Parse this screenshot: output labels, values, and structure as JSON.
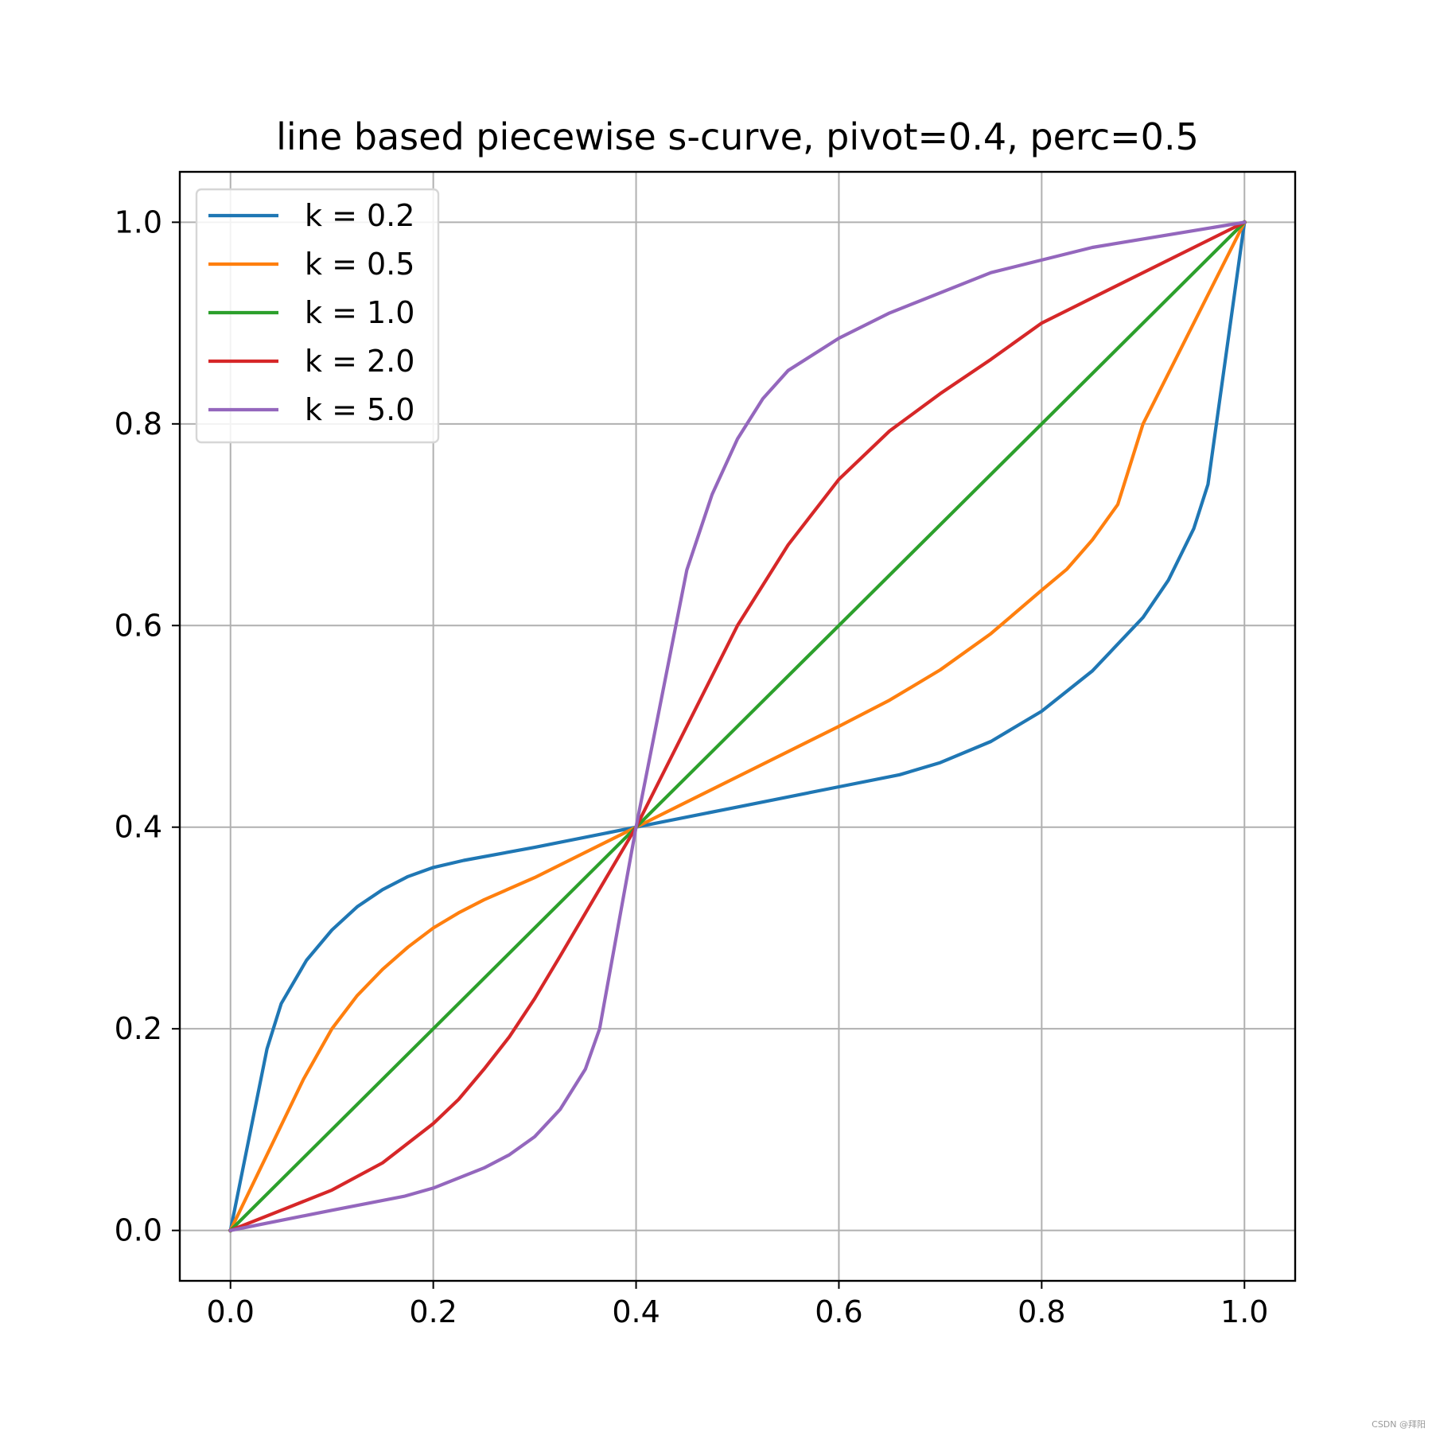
{
  "watermark": "CSDN @拜阳",
  "chart_data": {
    "type": "line",
    "title": "line based piecewise s-curve, pivot=0.4, perc=0.5",
    "xlabel": "",
    "ylabel": "",
    "xlim": [
      -0.05,
      1.05
    ],
    "ylim": [
      -0.05,
      1.05
    ],
    "xticks": [
      0.0,
      0.2,
      0.4,
      0.6,
      0.8,
      1.0
    ],
    "yticks": [
      0.0,
      0.2,
      0.4,
      0.6,
      0.8,
      1.0
    ],
    "xtick_labels": [
      "0.0",
      "0.2",
      "0.4",
      "0.6",
      "0.8",
      "1.0"
    ],
    "ytick_labels": [
      "0.0",
      "0.2",
      "0.4",
      "0.6",
      "0.8",
      "1.0"
    ],
    "grid": true,
    "legend_position": "top-left",
    "series": [
      {
        "name": "k = 0.2",
        "color": "#1f77b4",
        "points": [
          [
            0.0,
            0.0
          ],
          [
            0.036,
            0.18
          ],
          [
            0.05,
            0.225
          ],
          [
            0.075,
            0.268
          ],
          [
            0.1,
            0.298
          ],
          [
            0.125,
            0.321
          ],
          [
            0.15,
            0.338
          ],
          [
            0.175,
            0.351
          ],
          [
            0.2,
            0.36
          ],
          [
            0.23,
            0.367
          ],
          [
            0.3,
            0.38
          ],
          [
            0.4,
            0.4
          ],
          [
            0.5,
            0.42
          ],
          [
            0.6,
            0.44
          ],
          [
            0.66,
            0.452
          ],
          [
            0.7,
            0.464
          ],
          [
            0.75,
            0.485
          ],
          [
            0.8,
            0.515
          ],
          [
            0.85,
            0.555
          ],
          [
            0.9,
            0.608
          ],
          [
            0.925,
            0.645
          ],
          [
            0.95,
            0.696
          ],
          [
            0.964,
            0.74
          ],
          [
            1.0,
            1.0
          ]
        ]
      },
      {
        "name": "k = 0.5",
        "color": "#ff7f0e",
        "points": [
          [
            0.0,
            0.0
          ],
          [
            0.072,
            0.15
          ],
          [
            0.1,
            0.2
          ],
          [
            0.125,
            0.233
          ],
          [
            0.15,
            0.259
          ],
          [
            0.175,
            0.281
          ],
          [
            0.2,
            0.3
          ],
          [
            0.225,
            0.315
          ],
          [
            0.25,
            0.328
          ],
          [
            0.3,
            0.35
          ],
          [
            0.35,
            0.375
          ],
          [
            0.4,
            0.4
          ],
          [
            0.5,
            0.45
          ],
          [
            0.6,
            0.5
          ],
          [
            0.65,
            0.526
          ],
          [
            0.7,
            0.556
          ],
          [
            0.75,
            0.592
          ],
          [
            0.8,
            0.635
          ],
          [
            0.825,
            0.656
          ],
          [
            0.85,
            0.685
          ],
          [
            0.875,
            0.72
          ],
          [
            0.9,
            0.8
          ],
          [
            1.0,
            1.0
          ]
        ]
      },
      {
        "name": "k = 1.0",
        "color": "#2ca02c",
        "points": [
          [
            0.0,
            0.0
          ],
          [
            1.0,
            1.0
          ]
        ]
      },
      {
        "name": "k = 2.0",
        "color": "#d62728",
        "points": [
          [
            0.0,
            0.0
          ],
          [
            0.05,
            0.02
          ],
          [
            0.1,
            0.04
          ],
          [
            0.15,
            0.067
          ],
          [
            0.2,
            0.106
          ],
          [
            0.225,
            0.13
          ],
          [
            0.25,
            0.16
          ],
          [
            0.275,
            0.192
          ],
          [
            0.3,
            0.23
          ],
          [
            0.325,
            0.272
          ],
          [
            0.4,
            0.4
          ],
          [
            0.5,
            0.6
          ],
          [
            0.55,
            0.68
          ],
          [
            0.6,
            0.745
          ],
          [
            0.65,
            0.793
          ],
          [
            0.7,
            0.83
          ],
          [
            0.75,
            0.864
          ],
          [
            0.8,
            0.9
          ],
          [
            0.9,
            0.95
          ],
          [
            1.0,
            1.0
          ]
        ]
      },
      {
        "name": "k = 5.0",
        "color": "#9467bd",
        "points": [
          [
            0.0,
            0.0
          ],
          [
            0.1,
            0.02
          ],
          [
            0.172,
            0.034
          ],
          [
            0.2,
            0.042
          ],
          [
            0.25,
            0.062
          ],
          [
            0.275,
            0.075
          ],
          [
            0.3,
            0.093
          ],
          [
            0.325,
            0.12
          ],
          [
            0.35,
            0.16
          ],
          [
            0.364,
            0.2
          ],
          [
            0.4,
            0.4
          ],
          [
            0.45,
            0.655
          ],
          [
            0.475,
            0.73
          ],
          [
            0.5,
            0.785
          ],
          [
            0.525,
            0.825
          ],
          [
            0.55,
            0.853
          ],
          [
            0.6,
            0.885
          ],
          [
            0.65,
            0.91
          ],
          [
            0.7,
            0.93
          ],
          [
            0.75,
            0.95
          ],
          [
            0.85,
            0.975
          ],
          [
            1.0,
            1.0
          ]
        ]
      }
    ]
  }
}
